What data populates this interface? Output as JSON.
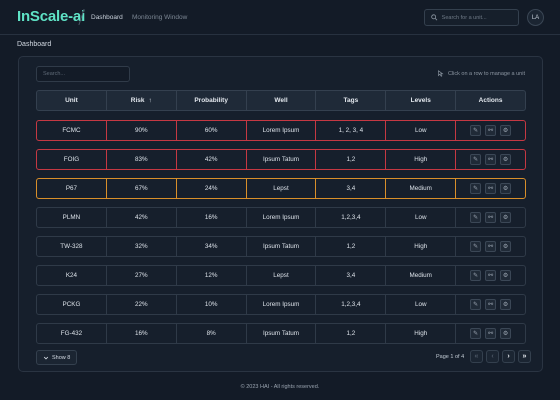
{
  "header": {
    "brand": "InScale-ai",
    "breadcrumb": [
      "Dashboard",
      "Monitoring Window"
    ],
    "search_placeholder": "Search for a unit...",
    "avatar_initials": "LA"
  },
  "page_title": "Dashboard",
  "panel": {
    "filter_placeholder": "Search...",
    "hint": "Click on a row to manage a unit"
  },
  "table": {
    "columns": [
      "Unit",
      "Risk",
      "Probability",
      "Well",
      "Tags",
      "Levels",
      "Actions"
    ],
    "sort_indicator": "↑",
    "rows": [
      {
        "unit": "FCMC",
        "risk": "90%",
        "probability": "60%",
        "well": "Lorem Ipsum",
        "tags": "1, 2, 3, 4",
        "level": "Low",
        "status": "red"
      },
      {
        "unit": "FOIG",
        "risk": "83%",
        "probability": "42%",
        "well": "Ipsum Tatum",
        "tags": "1,2",
        "level": "High",
        "status": "red"
      },
      {
        "unit": "P67",
        "risk": "67%",
        "probability": "24%",
        "well": "Lepst",
        "tags": "3,4",
        "level": "Medium",
        "status": "orange"
      },
      {
        "unit": "PLMN",
        "risk": "42%",
        "probability": "16%",
        "well": "Lorem Ipsum",
        "tags": "1,2,3,4",
        "level": "Low",
        "status": "normal"
      },
      {
        "unit": "TW-328",
        "risk": "32%",
        "probability": "34%",
        "well": "Ipsum Tatum",
        "tags": "1,2",
        "level": "High",
        "status": "normal"
      },
      {
        "unit": "K24",
        "risk": "27%",
        "probability": "12%",
        "well": "Lepst",
        "tags": "3,4",
        "level": "Medium",
        "status": "normal"
      },
      {
        "unit": "PCKG",
        "risk": "22%",
        "probability": "10%",
        "well": "Lorem Ipsum",
        "tags": "1,2,3,4",
        "level": "Low",
        "status": "normal"
      },
      {
        "unit": "FG-432",
        "risk": "16%",
        "probability": "8%",
        "well": "Ipsum Tatum",
        "tags": "1,2",
        "level": "High",
        "status": "normal"
      }
    ],
    "action_icons": [
      "edit-icon",
      "link-icon",
      "settings-icon"
    ]
  },
  "pagination": {
    "show_label": "Show 8",
    "page_info": "Page 1 of 4"
  },
  "footer": "© 2023 HAI - All rights reserved.",
  "colors": {
    "accent": "#5fe3c6",
    "critical": "#c53843",
    "warning": "#d88f2a",
    "background": "#131b27"
  }
}
